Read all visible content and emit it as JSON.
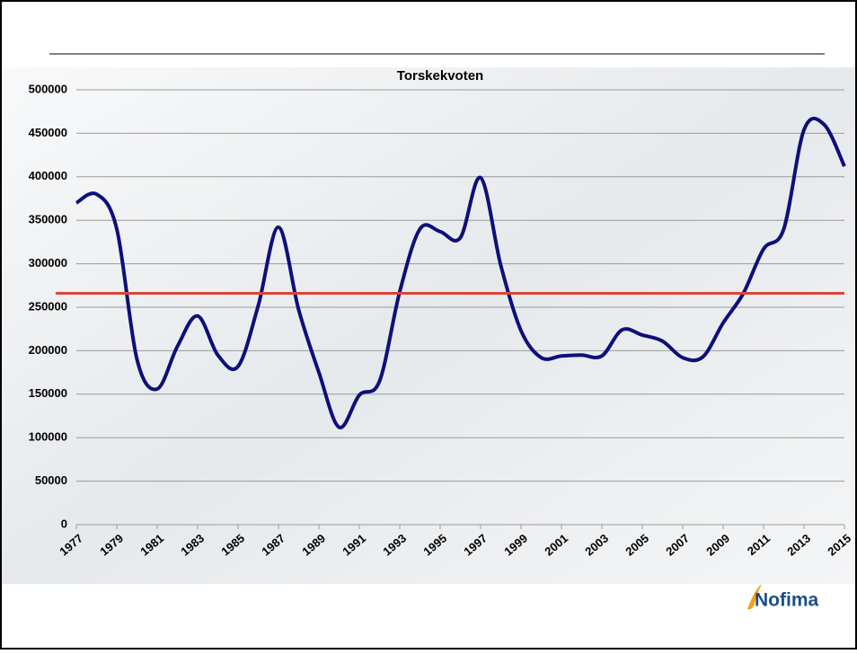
{
  "chart_data": {
    "type": "line",
    "title": "Torskekvoten",
    "x": [
      1977,
      1978,
      1979,
      1980,
      1981,
      1982,
      1983,
      1984,
      1985,
      1986,
      1987,
      1988,
      1989,
      1990,
      1991,
      1992,
      1993,
      1994,
      1995,
      1996,
      1997,
      1998,
      1999,
      2000,
      2001,
      2002,
      2003,
      2004,
      2005,
      2006,
      2007,
      2008,
      2009,
      2010,
      2011,
      2012,
      2013,
      2014,
      2015
    ],
    "series": [
      {
        "color": "#0f0f7a",
        "values": [
          370000,
          380000,
          340000,
          190000,
          156000,
          205000,
          240000,
          195000,
          182000,
          252000,
          342000,
          247000,
          175000,
          112000,
          149000,
          165000,
          268000,
          340000,
          337000,
          330000,
          399000,
          298000,
          223000,
          192000,
          194000,
          195000,
          194000,
          224000,
          218000,
          211000,
          192000,
          193000,
          232000,
          266000,
          317000,
          340000,
          454000,
          460000,
          412000
        ]
      }
    ],
    "reference_line": {
      "value": 266000,
      "color": "#d9463a"
    },
    "xlim": [
      1977,
      2015
    ],
    "xticks": [
      1977,
      1979,
      1981,
      1983,
      1985,
      1987,
      1989,
      1991,
      1993,
      1995,
      1997,
      1999,
      2001,
      2003,
      2005,
      2007,
      2009,
      2011,
      2013,
      2015
    ],
    "ylim": [
      0,
      500000
    ],
    "yticks": [
      0,
      50000,
      100000,
      150000,
      200000,
      250000,
      300000,
      350000,
      400000,
      450000,
      500000
    ],
    "grid": true,
    "logo": "Nofima"
  }
}
